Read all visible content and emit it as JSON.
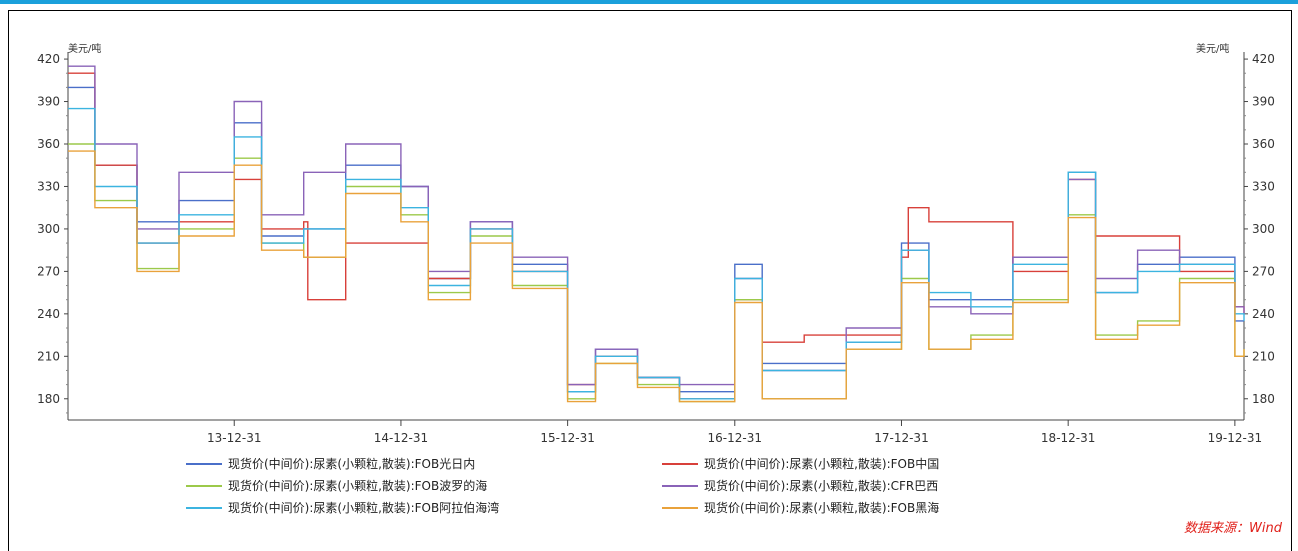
{
  "chart_data": {
    "type": "line",
    "y_unit_left": "美元/吨",
    "y_unit_right": "美元/吨",
    "ylim": [
      165,
      425
    ],
    "y_ticks": [
      180,
      210,
      240,
      270,
      300,
      330,
      360,
      390,
      420
    ],
    "x_start": "2013-01-01",
    "x_end": "2020-01-20",
    "x_ticks": [
      {
        "label": "13-12-31",
        "date": "2013-12-31"
      },
      {
        "label": "14-12-31",
        "date": "2014-12-31"
      },
      {
        "label": "15-12-31",
        "date": "2015-12-31"
      },
      {
        "label": "16-12-31",
        "date": "2016-12-31"
      },
      {
        "label": "17-12-31",
        "date": "2017-12-31"
      },
      {
        "label": "18-12-31",
        "date": "2018-12-31"
      },
      {
        "label": "19-12-31",
        "date": "2019-12-31"
      }
    ],
    "grid": false,
    "legend_position": "bottom",
    "series": [
      {
        "name": "现货价(中间价):尿素(小颗粒,散装):FOB光日内",
        "color": "#4a6fc9",
        "x": [
          "2013-01-01",
          "2013-03-01",
          "2013-06-01",
          "2013-09-01",
          "2013-12-31",
          "2014-03-01",
          "2014-06-01",
          "2014-09-01",
          "2014-12-31",
          "2015-03-01",
          "2015-06-01",
          "2015-09-01",
          "2015-12-31",
          "2016-03-01",
          "2016-06-01",
          "2016-09-01",
          "2016-12-31",
          "2017-03-01",
          "2017-06-01",
          "2017-09-01",
          "2017-12-31",
          "2018-03-01",
          "2018-06-01",
          "2018-09-01",
          "2018-12-31",
          "2019-03-01",
          "2019-06-01",
          "2019-09-01",
          "2019-12-31",
          "2020-01-20"
        ],
        "values": [
          400,
          345,
          305,
          320,
          375,
          295,
          300,
          345,
          330,
          265,
          305,
          275,
          185,
          215,
          195,
          185,
          275,
          205,
          205,
          220,
          290,
          250,
          250,
          280,
          340,
          255,
          275,
          280,
          235,
          235
        ]
      },
      {
        "name": "现货价(中间价):尿素(小颗粒,散装):FOB中国",
        "color": "#d8403a",
        "x": [
          "2013-01-01",
          "2013-03-01",
          "2013-06-01",
          "2013-09-01",
          "2013-12-31",
          "2014-03-01",
          "2014-06-01",
          "2014-06-10",
          "2014-09-01",
          "2014-12-31",
          "2015-03-01",
          "2015-06-01",
          "2015-09-01",
          "2015-12-31",
          "2016-03-01",
          "2016-06-01",
          "2016-09-01",
          "2016-12-31",
          "2017-03-01",
          "2017-06-01",
          "2017-09-01",
          "2017-12-31",
          "2018-01-15",
          "2018-03-01",
          "2018-06-01",
          "2018-09-01",
          "2018-12-31",
          "2019-03-01",
          "2019-06-01",
          "2019-09-01",
          "2019-12-31",
          "2020-01-20"
        ],
        "values": [
          410,
          345,
          290,
          305,
          335,
          300,
          305,
          250,
          290,
          290,
          265,
          300,
          270,
          190,
          210,
          195,
          180,
          250,
          220,
          225,
          225,
          280,
          315,
          305,
          305,
          270,
          335,
          295,
          295,
          270,
          245,
          240
        ]
      },
      {
        "name": "现货价(中间价):尿素(小颗粒,散装):FOB波罗的海",
        "color": "#9cc94a",
        "x": [
          "2013-01-01",
          "2013-03-01",
          "2013-06-01",
          "2013-09-01",
          "2013-12-31",
          "2014-03-01",
          "2014-06-01",
          "2014-09-01",
          "2014-12-31",
          "2015-03-01",
          "2015-06-01",
          "2015-09-01",
          "2015-12-31",
          "2016-03-01",
          "2016-06-01",
          "2016-09-01",
          "2016-12-31",
          "2017-03-01",
          "2017-06-01",
          "2017-09-01",
          "2017-12-31",
          "2018-03-01",
          "2018-06-01",
          "2018-09-01",
          "2018-12-31",
          "2019-03-01",
          "2019-06-01",
          "2019-09-01",
          "2019-12-31",
          "2020-01-20"
        ],
        "values": [
          360,
          320,
          272,
          300,
          350,
          290,
          280,
          330,
          310,
          255,
          295,
          260,
          180,
          205,
          190,
          178,
          250,
          180,
          180,
          215,
          265,
          215,
          225,
          250,
          310,
          225,
          235,
          265,
          210,
          215
        ]
      },
      {
        "name": "现货价(中间价):尿素(小颗粒,散装):CFR巴西",
        "color": "#8a63b8",
        "x": [
          "2013-01-01",
          "2013-03-01",
          "2013-06-01",
          "2013-09-01",
          "2013-12-31",
          "2014-03-01",
          "2014-06-01",
          "2014-09-01",
          "2014-12-31",
          "2015-03-01",
          "2015-06-01",
          "2015-09-01",
          "2015-12-31",
          "2016-03-01",
          "2016-06-01",
          "2016-09-01",
          "2016-12-31",
          "2017-03-01",
          "2017-06-01",
          "2017-09-01",
          "2017-12-31",
          "2018-03-01",
          "2018-06-01",
          "2018-09-01",
          "2018-12-31",
          "2019-03-01",
          "2019-06-01",
          "2019-09-01",
          "2019-12-31",
          "2020-01-20"
        ],
        "values": [
          415,
          360,
          300,
          340,
          390,
          310,
          340,
          360,
          330,
          270,
          305,
          280,
          190,
          215,
          195,
          190,
          265,
          200,
          200,
          230,
          285,
          245,
          240,
          280,
          335,
          265,
          285,
          275,
          245,
          240
        ]
      },
      {
        "name": "现货价(中间价):尿素(小颗粒,散装):FOB阿拉伯海湾",
        "color": "#3cb4e0",
        "x": [
          "2013-01-01",
          "2013-03-01",
          "2013-06-01",
          "2013-09-01",
          "2013-12-31",
          "2014-03-01",
          "2014-06-01",
          "2014-09-01",
          "2014-12-31",
          "2015-03-01",
          "2015-06-01",
          "2015-09-01",
          "2015-12-31",
          "2016-03-01",
          "2016-06-01",
          "2016-09-01",
          "2016-12-31",
          "2017-03-01",
          "2017-06-01",
          "2017-09-01",
          "2017-12-31",
          "2018-03-01",
          "2018-06-01",
          "2018-09-01",
          "2018-12-31",
          "2019-03-01",
          "2019-06-01",
          "2019-09-01",
          "2019-12-31",
          "2020-01-20"
        ],
        "values": [
          385,
          330,
          290,
          310,
          365,
          290,
          300,
          335,
          315,
          260,
          300,
          270,
          185,
          210,
          195,
          180,
          265,
          200,
          200,
          220,
          285,
          255,
          245,
          275,
          340,
          255,
          270,
          275,
          240,
          235
        ]
      },
      {
        "name": "现货价(中间价):尿素(小颗粒,散装):FOB黑海",
        "color": "#e9a23b",
        "x": [
          "2013-01-01",
          "2013-03-01",
          "2013-06-01",
          "2013-09-01",
          "2013-12-31",
          "2014-03-01",
          "2014-06-01",
          "2014-09-01",
          "2014-12-31",
          "2015-03-01",
          "2015-06-01",
          "2015-09-01",
          "2015-12-31",
          "2016-03-01",
          "2016-06-01",
          "2016-09-01",
          "2016-12-31",
          "2017-03-01",
          "2017-06-01",
          "2017-09-01",
          "2017-12-31",
          "2018-03-01",
          "2018-06-01",
          "2018-09-01",
          "2018-12-31",
          "2019-03-01",
          "2019-06-01",
          "2019-09-01",
          "2019-12-31",
          "2020-01-20"
        ],
        "values": [
          355,
          315,
          270,
          295,
          345,
          285,
          280,
          325,
          305,
          250,
          290,
          258,
          178,
          205,
          188,
          178,
          248,
          180,
          180,
          215,
          262,
          215,
          222,
          248,
          308,
          222,
          232,
          262,
          210,
          215
        ]
      }
    ]
  },
  "source_note": "数据来源：Wind"
}
